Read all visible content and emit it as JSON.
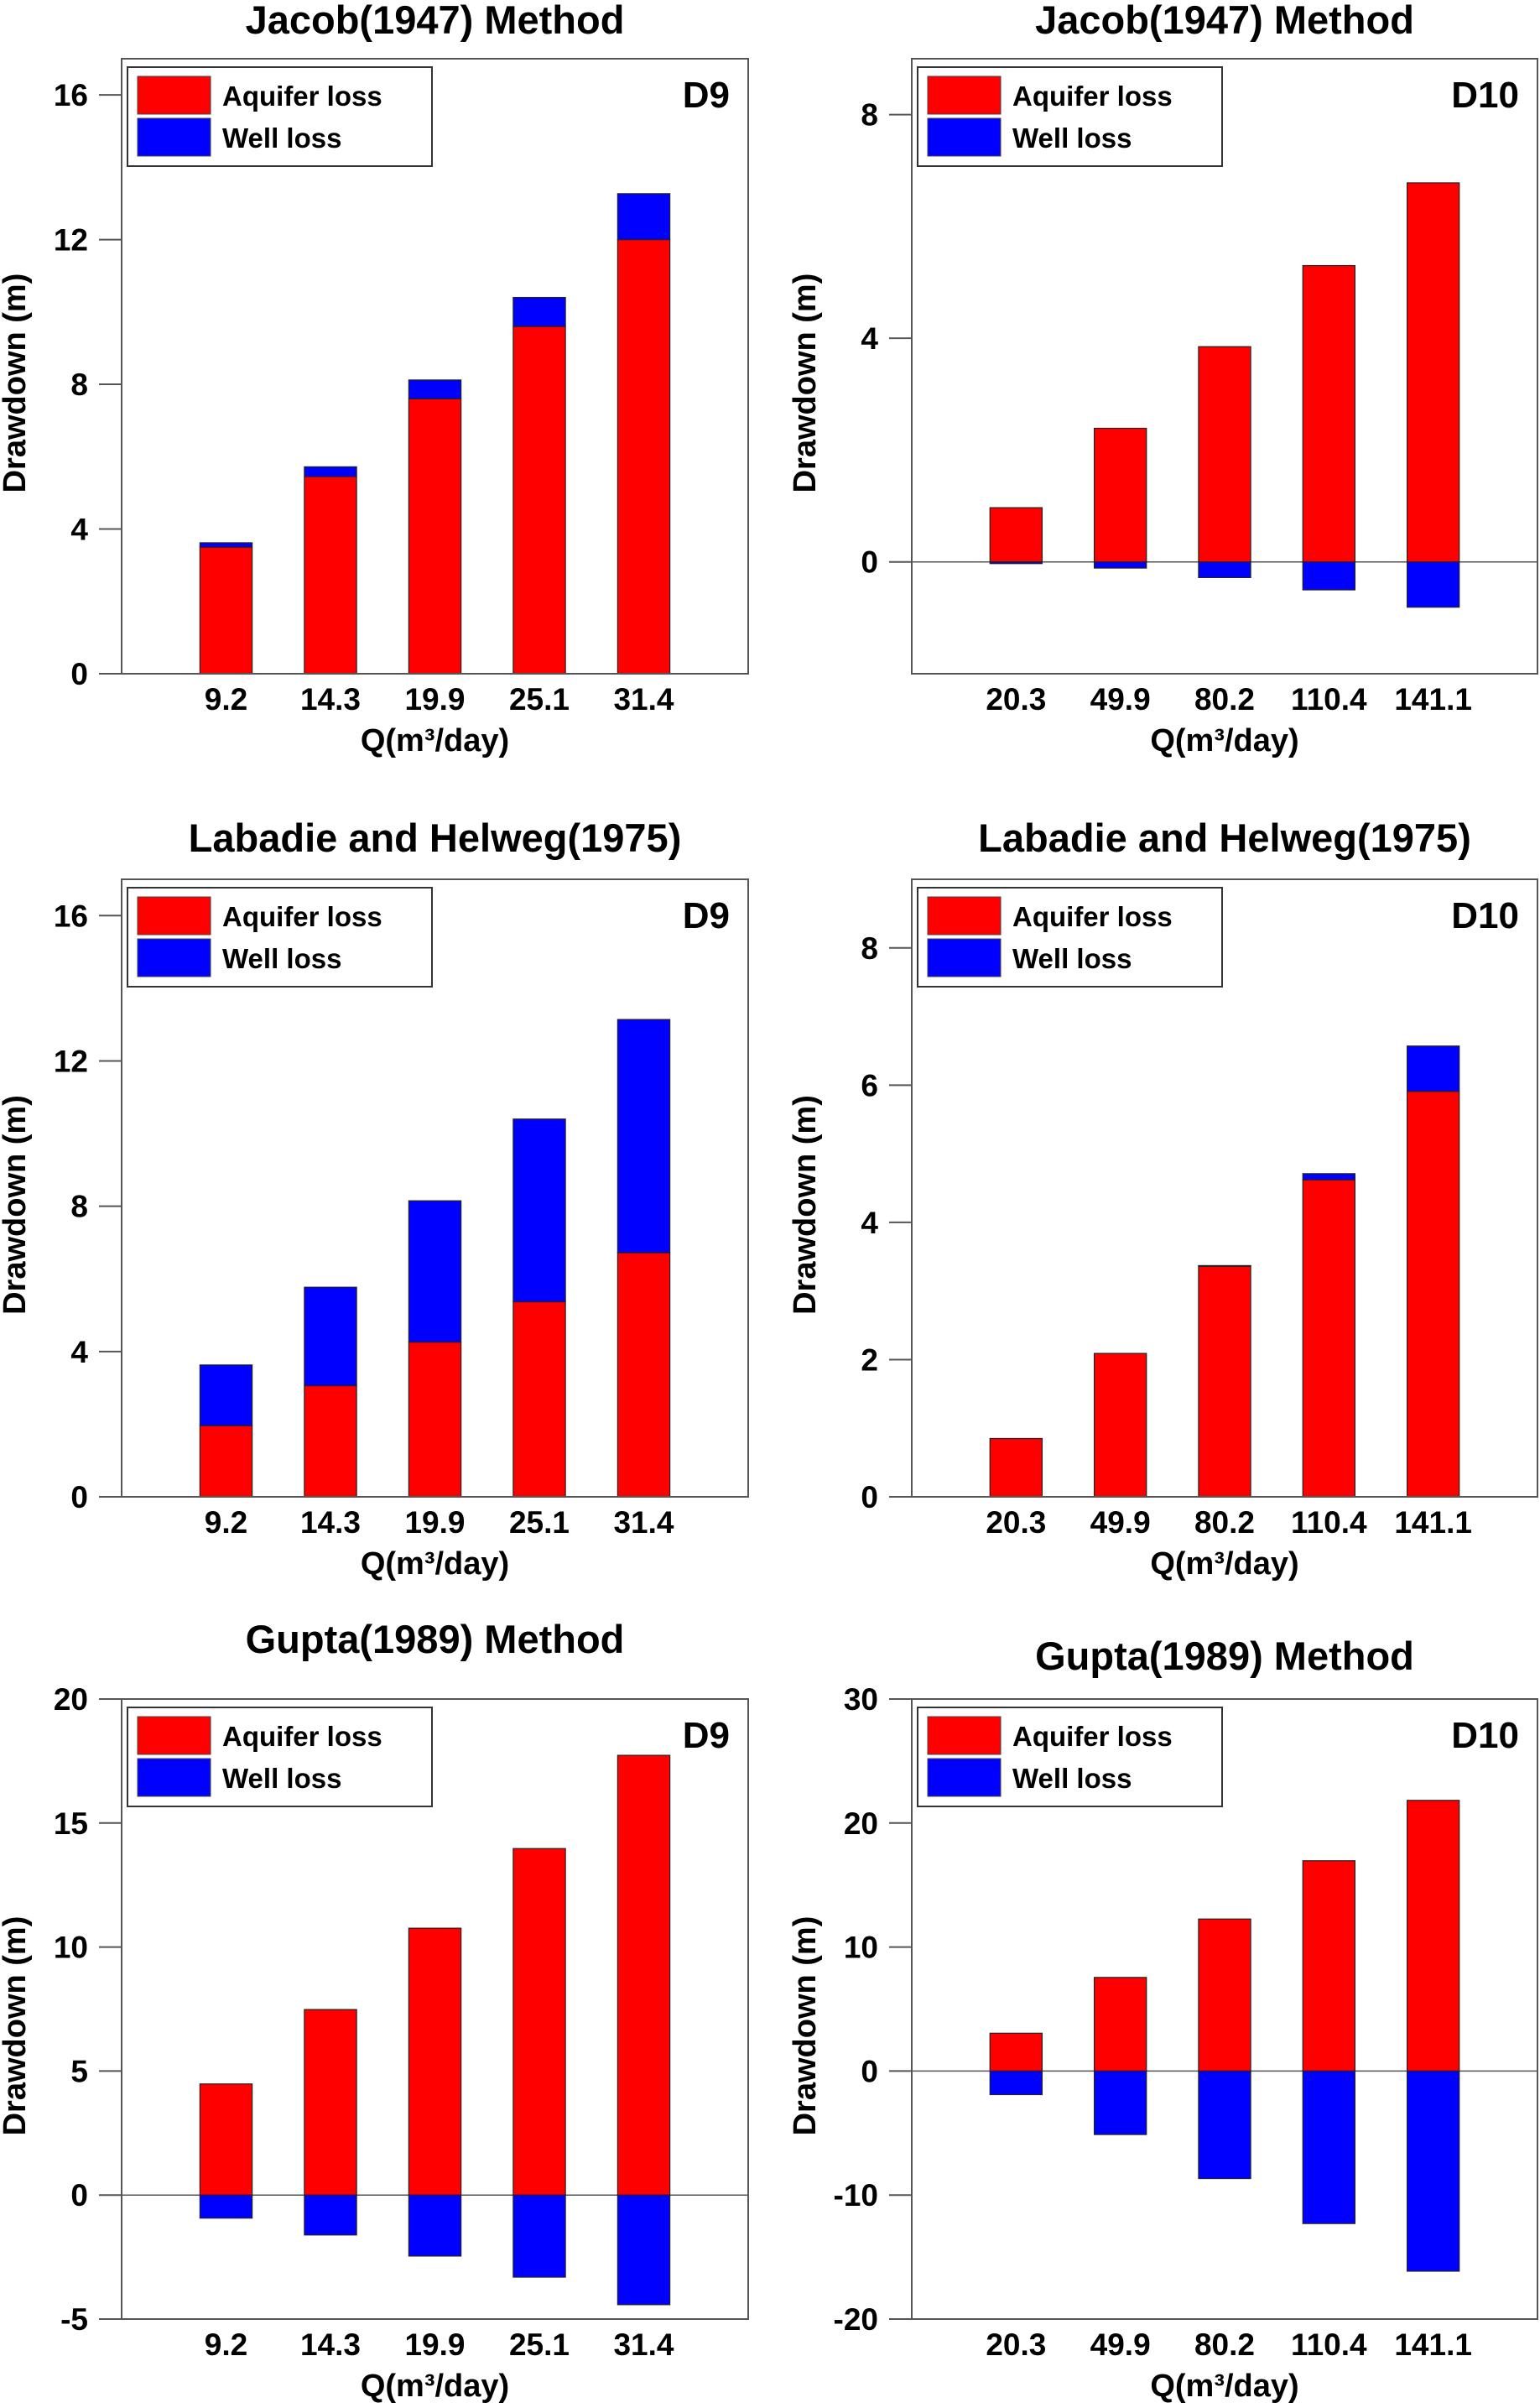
{
  "figure": {
    "colors": {
      "aquifer_loss": "#ff0000",
      "well_loss": "#0000ff",
      "axis": "#555555",
      "text": "#000000"
    }
  },
  "chart_data": [
    {
      "type": "bar",
      "stacked": true,
      "title": "Jacob(1947) Method",
      "well": "D9",
      "xlabel": "Q(m³/day)",
      "ylabel": "Drawdown (m)",
      "categories": [
        "9.2",
        "14.3",
        "19.9",
        "25.1",
        "31.4"
      ],
      "ylim": [
        0,
        17
      ],
      "yticks": [
        0,
        4,
        8,
        12,
        16
      ],
      "legend": {
        "placement": "top-left",
        "entries": [
          "Aquifer loss",
          "Well loss"
        ]
      },
      "zero_line": false,
      "series": [
        {
          "name": "Aquifer loss",
          "values": [
            3.5,
            5.45,
            7.6,
            9.6,
            12.0
          ]
        },
        {
          "name": "Well loss",
          "values": [
            0.12,
            0.27,
            0.52,
            0.8,
            1.27
          ]
        }
      ]
    },
    {
      "type": "bar",
      "stacked": true,
      "title": "Jacob(1947) Method",
      "well": "D10",
      "xlabel": "Q(m³/day)",
      "ylabel": "Drawdown (m)",
      "categories": [
        "20.3",
        "49.9",
        "80.2",
        "110.4",
        "141.1"
      ],
      "ylim": [
        -2,
        9
      ],
      "yticks": [
        0,
        4,
        8
      ],
      "legend": {
        "placement": "top-left",
        "entries": [
          "Aquifer loss",
          "Well loss"
        ]
      },
      "zero_line": true,
      "series": [
        {
          "name": "Aquifer loss",
          "values": [
            0.97,
            2.39,
            3.85,
            5.3,
            6.78
          ]
        },
        {
          "name": "Well loss",
          "values": [
            -0.03,
            -0.11,
            -0.28,
            -0.5,
            -0.81
          ]
        }
      ]
    },
    {
      "type": "bar",
      "stacked": true,
      "title": "Labadie and Helweg(1975)",
      "well": "D9",
      "xlabel": "Q(m³/day)",
      "ylabel": "Drawdown (m)",
      "categories": [
        "9.2",
        "14.3",
        "19.9",
        "25.1",
        "31.4"
      ],
      "ylim": [
        0,
        17
      ],
      "yticks": [
        0,
        4,
        8,
        12,
        16
      ],
      "legend": {
        "placement": "top-left",
        "entries": [
          "Aquifer loss",
          "Well loss"
        ]
      },
      "zero_line": false,
      "series": [
        {
          "name": "Aquifer loss",
          "values": [
            1.96,
            3.06,
            4.26,
            5.37,
            6.72
          ]
        },
        {
          "name": "Well loss",
          "values": [
            1.67,
            2.71,
            3.89,
            5.03,
            6.42
          ]
        }
      ]
    },
    {
      "type": "bar",
      "stacked": true,
      "title": "Labadie and Helweg(1975)",
      "well": "D10",
      "xlabel": "Q(m³/day)",
      "ylabel": "Drawdown (m)",
      "categories": [
        "20.3",
        "49.9",
        "80.2",
        "110.4",
        "141.1"
      ],
      "ylim": [
        0,
        9
      ],
      "yticks": [
        0,
        2,
        4,
        6,
        8
      ],
      "legend": {
        "placement": "top-left",
        "entries": [
          "Aquifer loss",
          "Well loss"
        ]
      },
      "zero_line": false,
      "series": [
        {
          "name": "Aquifer loss",
          "values": [
            0.85,
            2.09,
            3.36,
            4.62,
            5.91
          ]
        },
        {
          "name": "Well loss",
          "values": [
            0.0,
            0.0,
            0.01,
            0.09,
            0.66
          ]
        }
      ]
    },
    {
      "type": "bar",
      "stacked": true,
      "title": "Gupta(1989) Method",
      "well": "D9",
      "xlabel": "Q(m³/day)",
      "ylabel": "Drawdown (m)",
      "categories": [
        "9.2",
        "14.3",
        "19.9",
        "25.1",
        "31.4"
      ],
      "ylim": [
        -5,
        20
      ],
      "yticks": [
        -5,
        0,
        5,
        10,
        15,
        20
      ],
      "legend": {
        "placement": "top-left",
        "entries": [
          "Aquifer loss",
          "Well loss"
        ]
      },
      "zero_line": true,
      "series": [
        {
          "name": "Aquifer loss",
          "values": [
            4.48,
            7.48,
            10.76,
            13.97,
            17.73
          ]
        },
        {
          "name": "Well loss",
          "values": [
            -0.93,
            -1.61,
            -2.46,
            -3.31,
            -4.42
          ]
        }
      ]
    },
    {
      "type": "bar",
      "stacked": true,
      "title": "Gupta(1989) Method",
      "well": "D10",
      "xlabel": "Q(m³/day)",
      "ylabel": "Drawdown (m)",
      "categories": [
        "20.3",
        "49.9",
        "80.2",
        "110.4",
        "141.1"
      ],
      "ylim": [
        -20,
        30
      ],
      "yticks": [
        -20,
        -10,
        0,
        10,
        20,
        30
      ],
      "legend": {
        "placement": "top-left",
        "entries": [
          "Aquifer loss",
          "Well loss"
        ]
      },
      "zero_line": true,
      "series": [
        {
          "name": "Aquifer loss",
          "values": [
            3.05,
            7.55,
            12.26,
            16.96,
            21.83
          ]
        },
        {
          "name": "Well loss",
          "values": [
            -1.9,
            -5.12,
            -8.67,
            -12.3,
            -16.14
          ]
        }
      ]
    }
  ]
}
